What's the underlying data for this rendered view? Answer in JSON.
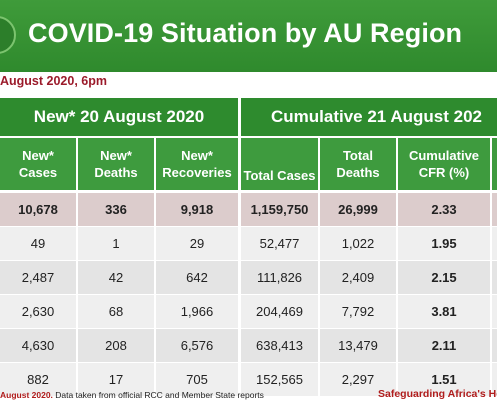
{
  "header": {
    "title": "COVID-19 Situation by AU Region",
    "date_line": "August 2020, 6pm",
    "colors": {
      "green": "#2e8b2e",
      "accent_red": "#9b1a2a"
    }
  },
  "sections": {
    "new": "New* 20 August 2020",
    "cumulative": "Cumulative 21 August 202"
  },
  "columns": [
    {
      "l1": "New*",
      "l2": "Cases"
    },
    {
      "l1": "New*",
      "l2": "Deaths"
    },
    {
      "l1": "New*",
      "l2": "Recoveries"
    },
    {
      "l1": "Total Cases",
      "l2": ""
    },
    {
      "l1": "Total",
      "l2": "Deaths"
    },
    {
      "l1": "Cumulative",
      "l2": "CFR (%)"
    }
  ],
  "rows": [
    [
      "10,678",
      "336",
      "9,918",
      "1,159,750",
      "26,999",
      "2.33"
    ],
    [
      "49",
      "1",
      "29",
      "52,477",
      "1,022",
      "1.95"
    ],
    [
      "2,487",
      "42",
      "642",
      "111,826",
      "2,409",
      "2.15"
    ],
    [
      "2,630",
      "68",
      "1,966",
      "204,469",
      "7,792",
      "3.81"
    ],
    [
      "4,630",
      "208",
      "6,576",
      "638,413",
      "13,479",
      "2.11"
    ],
    [
      "882",
      "17",
      "705",
      "152,565",
      "2,297",
      "1.51"
    ]
  ],
  "footer": {
    "date": "August 2020.",
    "note": " Data taken from official RCC and Member State reports",
    "tagline": "Safeguarding Africa's Healt"
  }
}
